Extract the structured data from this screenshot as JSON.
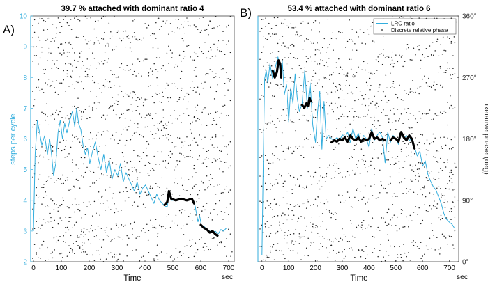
{
  "colors": {
    "ratio": "#33aede",
    "phase": "#222222",
    "attached": "#000000",
    "axis": "#333333",
    "left_axis_text": "#33aede"
  },
  "chart_data": [
    {
      "panel_label": "A)",
      "type": "line",
      "title": "39.7 % attached with dominant ratio 4",
      "xlabel": "Time",
      "x_unit_label": "sec",
      "ylabel": "steps per cycle",
      "xlim": [
        -10,
        720
      ],
      "ylim": [
        2,
        10
      ],
      "x_ticks": [
        0,
        100,
        200,
        300,
        400,
        500,
        600,
        700
      ],
      "y_ticks": [
        2,
        3,
        4,
        5,
        6,
        7,
        8,
        9,
        10
      ],
      "series": [
        {
          "role": "ratio",
          "points": [
            [
              0,
              3.0
            ],
            [
              6,
              5.5
            ],
            [
              14,
              6.6
            ],
            [
              22,
              6.2
            ],
            [
              30,
              5.8
            ],
            [
              40,
              6.1
            ],
            [
              50,
              5.5
            ],
            [
              58,
              6.0
            ],
            [
              66,
              5.4
            ],
            [
              72,
              4.8
            ],
            [
              80,
              5.2
            ],
            [
              88,
              6.2
            ],
            [
              96,
              6.6
            ],
            [
              104,
              6.0
            ],
            [
              112,
              6.5
            ],
            [
              120,
              6.2
            ],
            [
              130,
              6.6
            ],
            [
              140,
              6.9
            ],
            [
              148,
              6.4
            ],
            [
              155,
              7.0
            ],
            [
              162,
              6.5
            ],
            [
              170,
              6.3
            ],
            [
              178,
              5.8
            ],
            [
              186,
              5.5
            ],
            [
              194,
              5.7
            ],
            [
              202,
              5.2
            ],
            [
              212,
              5.6
            ],
            [
              222,
              5.9
            ],
            [
              232,
              5.4
            ],
            [
              242,
              5.0
            ],
            [
              252,
              5.5
            ],
            [
              262,
              4.9
            ],
            [
              272,
              5.3
            ],
            [
              282,
              4.7
            ],
            [
              292,
              5.0
            ],
            [
              302,
              4.8
            ],
            [
              312,
              5.2
            ],
            [
              322,
              4.6
            ],
            [
              332,
              4.9
            ],
            [
              342,
              4.7
            ],
            [
              352,
              4.5
            ],
            [
              362,
              4.3
            ],
            [
              372,
              4.6
            ],
            [
              382,
              4.2
            ],
            [
              392,
              4.4
            ],
            [
              402,
              4.5
            ],
            [
              412,
              4.3
            ],
            [
              422,
              4.1
            ],
            [
              432,
              3.9
            ],
            [
              442,
              4.2
            ],
            [
              452,
              4.0
            ],
            [
              462,
              3.9
            ],
            [
              472,
              3.8
            ],
            [
              480,
              3.8
            ],
            [
              486,
              4.2
            ],
            [
              494,
              4.0
            ],
            [
              510,
              4.0
            ],
            [
              530,
              4.05
            ],
            [
              550,
              4.0
            ],
            [
              570,
              4.05
            ],
            [
              580,
              3.8
            ],
            [
              590,
              3.3
            ],
            [
              596,
              3.5
            ],
            [
              602,
              3.2
            ],
            [
              612,
              3.15
            ],
            [
              622,
              3.05
            ],
            [
              632,
              3.0
            ],
            [
              642,
              2.95
            ],
            [
              652,
              3.0
            ],
            [
              662,
              2.9
            ],
            [
              672,
              3.05
            ],
            [
              682,
              3.0
            ],
            [
              692,
              3.1
            ]
          ]
        },
        {
          "role": "attached",
          "segments": [
            [
              [
                470,
                3.85
              ],
              [
                480,
                3.95
              ],
              [
                486,
                4.3
              ],
              [
                494,
                4.05
              ],
              [
                510,
                4.0
              ],
              [
                530,
                4.05
              ],
              [
                550,
                4.0
              ],
              [
                568,
                4.05
              ],
              [
                576,
                3.9
              ]
            ],
            [
              [
                600,
                3.2
              ],
              [
                612,
                3.1
              ],
              [
                622,
                3.05
              ],
              [
                632,
                2.95
              ],
              [
                642,
                3.0
              ],
              [
                652,
                2.9
              ],
              [
                660,
                2.85
              ]
            ]
          ]
        }
      ]
    },
    {
      "panel_label": "B)",
      "type": "line",
      "title": "53.4 % attached with dominant ratio 6",
      "xlabel": "Time",
      "x_unit_label": "sec",
      "ylabel": "Relative phase (deg)",
      "xlim": [
        -15,
        735
      ],
      "ylim": [
        0,
        360
      ],
      "x_ticks": [
        0,
        100,
        200,
        300,
        400,
        500,
        600,
        700
      ],
      "y_ticks": [
        "0°",
        "90°",
        "180°",
        "270°",
        "360°"
      ],
      "legend": {
        "position": "top-right",
        "entries": [
          "LRC ratio",
          "Discrete relative phase"
        ]
      },
      "series": [
        {
          "name": "LRC ratio",
          "role": "ratio",
          "points": [
            [
              0,
              10
            ],
            [
              5,
              150
            ],
            [
              10,
              268
            ],
            [
              16,
              280
            ],
            [
              22,
              262
            ],
            [
              30,
              290
            ],
            [
              40,
              268
            ],
            [
              50,
              285
            ],
            [
              60,
              300
            ],
            [
              70,
              275
            ],
            [
              76,
              295
            ],
            [
              84,
              245
            ],
            [
              92,
              260
            ],
            [
              100,
              205
            ],
            [
              108,
              255
            ],
            [
              116,
              232
            ],
            [
              124,
              275
            ],
            [
              132,
              240
            ],
            [
              140,
              220
            ],
            [
              150,
              232
            ],
            [
              160,
              280
            ],
            [
              170,
              225
            ],
            [
              180,
              262
            ],
            [
              190,
              200
            ],
            [
              200,
              175
            ],
            [
              208,
              220
            ],
            [
              216,
              250
            ],
            [
              224,
              165
            ],
            [
              232,
              235
            ],
            [
              240,
              180
            ],
            [
              250,
              185
            ],
            [
              260,
              180
            ],
            [
              270,
              178
            ],
            [
              280,
              182
            ],
            [
              290,
              178
            ],
            [
              300,
              186
            ],
            [
              310,
              182
            ],
            [
              320,
              190
            ],
            [
              330,
              175
            ],
            [
              340,
              195
            ],
            [
              350,
              180
            ],
            [
              360,
              188
            ],
            [
              370,
              175
            ],
            [
              380,
              185
            ],
            [
              390,
              180
            ],
            [
              400,
              168
            ],
            [
              410,
              195
            ],
            [
              420,
              178
            ],
            [
              430,
              185
            ],
            [
              440,
              190
            ],
            [
              450,
              182
            ],
            [
              460,
              145
            ],
            [
              470,
              190
            ],
            [
              480,
              175
            ],
            [
              490,
              185
            ],
            [
              500,
              180
            ],
            [
              510,
              172
            ],
            [
              520,
              188
            ],
            [
              530,
              180
            ],
            [
              540,
              185
            ],
            [
              550,
              178
            ],
            [
              560,
              180
            ],
            [
              570,
              168
            ],
            [
              580,
              155
            ],
            [
              590,
              162
            ],
            [
              600,
              140
            ],
            [
              610,
              148
            ],
            [
              620,
              128
            ],
            [
              630,
              118
            ],
            [
              640,
              110
            ],
            [
              650,
              105
            ],
            [
              660,
              95
            ],
            [
              670,
              85
            ],
            [
              680,
              70
            ],
            [
              690,
              62
            ],
            [
              700,
              58
            ],
            [
              710,
              55
            ],
            [
              718,
              50
            ]
          ]
        },
        {
          "name": "Discrete relative phase",
          "role": "phase"
        },
        {
          "role": "attached",
          "segments": [
            [
              [
                40,
                280
              ],
              [
                48,
                270
              ],
              [
                56,
                278
              ],
              [
                62,
                295
              ],
              [
                68,
                290
              ],
              [
                72,
                270
              ]
            ],
            [
              [
                150,
                230
              ],
              [
                158,
                225
              ],
              [
                166,
                232
              ],
              [
                172,
                228
              ],
              [
                178,
                240
              ],
              [
                182,
                235
              ]
            ],
            [
              [
                260,
                175
              ],
              [
                270,
                178
              ],
              [
                280,
                176
              ],
              [
                290,
                180
              ],
              [
                300,
                178
              ],
              [
                310,
                182
              ],
              [
                320,
                176
              ],
              [
                330,
                185
              ],
              [
                340,
                180
              ],
              [
                350,
                178
              ],
              [
                360,
                182
              ],
              [
                370,
                176
              ],
              [
                380,
                180
              ],
              [
                390,
                178
              ],
              [
                400,
                180
              ],
              [
                410,
                190
              ],
              [
                420,
                180
              ],
              [
                430,
                182
              ],
              [
                440,
                178
              ],
              [
                450,
                180
              ],
              [
                460,
                178
              ]
            ],
            [
              [
                480,
                178
              ],
              [
                490,
                182
              ],
              [
                500,
                180
              ],
              [
                510,
                176
              ],
              [
                520,
                190
              ],
              [
                530,
                182
              ],
              [
                540,
                178
              ],
              [
                550,
                185
              ],
              [
                560,
                180
              ],
              [
                570,
                166
              ]
            ]
          ]
        }
      ]
    }
  ]
}
